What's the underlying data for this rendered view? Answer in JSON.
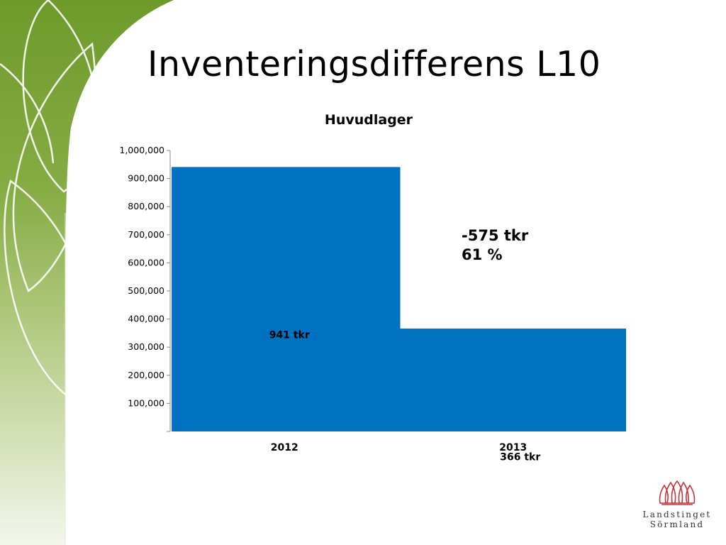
{
  "slide": {
    "title": "Inventeringsdifferens L10"
  },
  "chart_data": {
    "type": "bar",
    "title": "Huvudlager",
    "categories": [
      "2012",
      "2013"
    ],
    "values": [
      941000,
      366000
    ],
    "data_labels": [
      "941 tkr",
      "366 tkr"
    ],
    "ylim": [
      0,
      1000000
    ],
    "yticks": [
      "100,000",
      "200,000",
      "300,000",
      "400,000",
      "500,000",
      "600,000",
      "700,000",
      "800,000",
      "900,000",
      "1,000,000"
    ],
    "ytick_values": [
      100000,
      200000,
      300000,
      400000,
      500000,
      600000,
      700000,
      800000,
      900000,
      1000000
    ],
    "xlabel": "",
    "ylabel": "",
    "grid": false,
    "legend": "none",
    "bar_color": "#0070C0",
    "annotation": [
      "-575 tkr",
      "61 %"
    ]
  },
  "logo": {
    "line1": "Landstinget",
    "line2": "Sörmland",
    "color": "#C0373A"
  }
}
